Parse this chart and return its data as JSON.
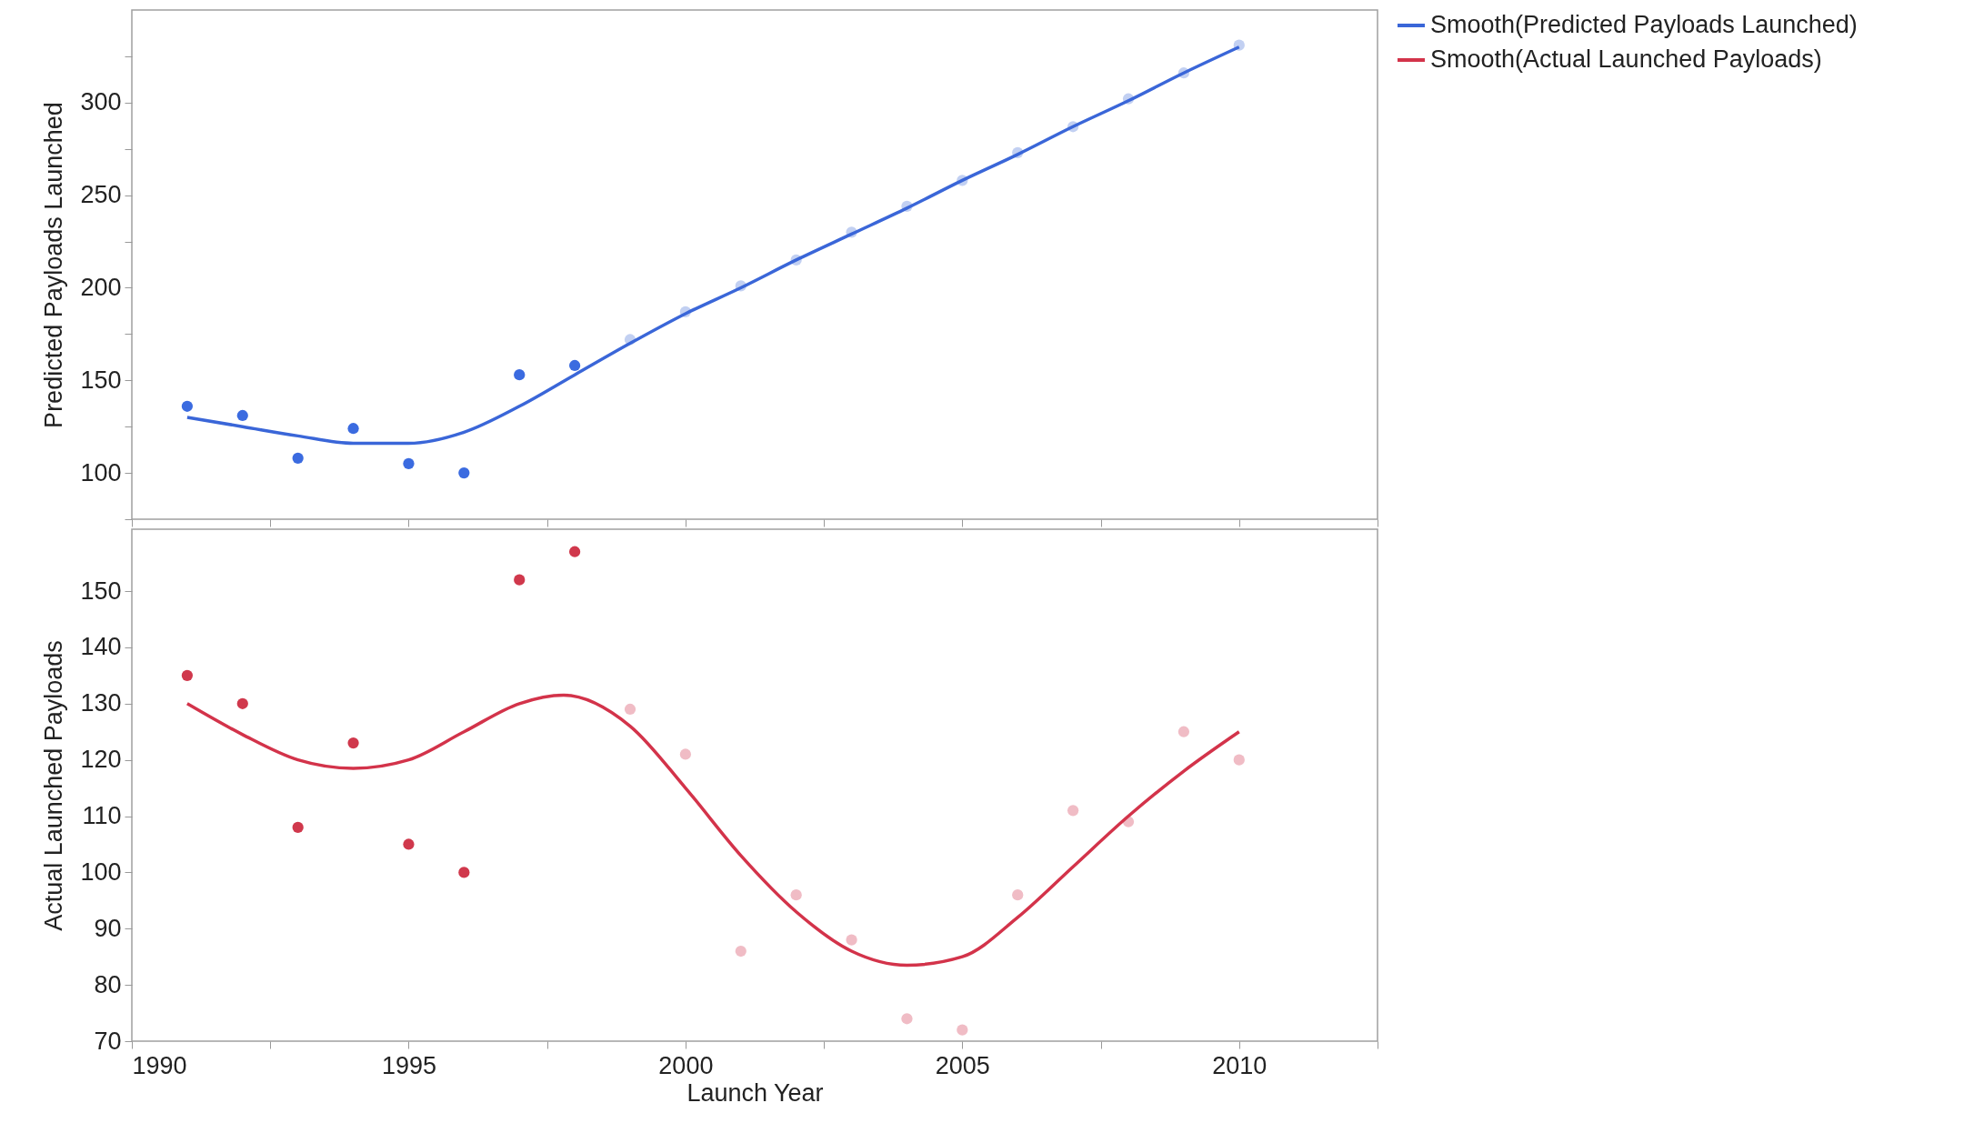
{
  "chart_data": [
    {
      "type": "scatter",
      "ylabel": "Predicted Payloads Launched",
      "xlim": [
        1990,
        2012.5
      ],
      "xticks": [
        1990,
        {
          "value": 1992.5,
          "label": null
        },
        1995,
        {
          "value": 1997.5,
          "label": null
        },
        2000,
        {
          "value": 2002.5,
          "label": null
        },
        2005,
        {
          "value": 2007.5,
          "label": null
        },
        2010,
        {
          "value": 2012.5,
          "label": null
        }
      ],
      "ylim": [
        75,
        350
      ],
      "yticks": [
        {
          "value": 75,
          "label": null
        },
        100,
        {
          "value": 125,
          "label": null
        },
        150,
        {
          "value": 175,
          "label": null
        },
        200,
        {
          "value": 225,
          "label": null
        },
        250,
        {
          "value": 275,
          "label": null
        },
        300,
        {
          "value": 325,
          "label": null
        }
      ],
      "tick_labels": "y",
      "grid": false,
      "legend": "top right",
      "series": [
        {
          "marker": "circle",
          "x": [
            1991,
            1992,
            1993,
            1994,
            1995,
            1996,
            1997,
            1998,
            1999,
            2000,
            2001,
            2002,
            2003,
            2004,
            2005,
            2006,
            2007,
            2008,
            2009,
            2010
          ],
          "values": [
            136,
            131,
            108,
            124,
            105,
            100,
            153,
            158,
            172,
            187,
            201,
            215,
            230,
            244,
            258,
            273,
            287,
            302,
            316,
            331
          ],
          "colors": [
            "#3b6be0",
            "#3b6be0",
            "#3b6be0",
            "#3b6be0",
            "#3b6be0",
            "#3b6be0",
            "#3b6be0",
            "#3b6be0",
            "#c2d0f2",
            "#c2d0f2",
            "#c2d0f2",
            "#c2d0f2",
            "#c2d0f2",
            "#c2d0f2",
            "#c2d0f2",
            "#c2d0f2",
            "#c2d0f2",
            "#c2d0f2",
            "#c2d0f2",
            "#c2d0f2"
          ]
        },
        {
          "type": "line",
          "name": "Smooth(Predicted Payloads Launched)",
          "color": "#3a66d8",
          "x": [
            1991,
            1992,
            1993,
            1994,
            1995,
            1996,
            1997,
            1998,
            1999,
            2000,
            2001,
            2002,
            2003,
            2004,
            2005,
            2006,
            2007,
            2008,
            2009,
            2010
          ],
          "values": [
            130,
            125,
            120,
            116,
            116,
            122,
            136,
            153,
            170,
            186,
            200,
            215,
            229,
            243,
            258,
            272,
            287,
            301,
            316,
            330
          ]
        }
      ]
    },
    {
      "type": "scatter",
      "xlabel": "Launch Year",
      "ylabel": "Actual Launched Payloads",
      "xlim": [
        1990,
        2012.5
      ],
      "xticks": [
        1990,
        {
          "value": 1992.5,
          "label": null
        },
        1995,
        {
          "value": 1997.5,
          "label": null
        },
        2000,
        {
          "value": 2002.5,
          "label": null
        },
        2005,
        {
          "value": 2007.5,
          "label": null
        },
        2010,
        {
          "value": 2012.5,
          "label": null
        }
      ],
      "ylim": [
        70,
        161
      ],
      "yticks": [
        70,
        80,
        90,
        100,
        110,
        120,
        130,
        140,
        150
      ],
      "grid": false,
      "legend": "top right",
      "series": [
        {
          "marker": "circle",
          "x": [
            1991,
            1992,
            1993,
            1994,
            1995,
            1996,
            1997,
            1998,
            1999,
            2000,
            2001,
            2002,
            2003,
            2004,
            2005,
            2006,
            2007,
            2008,
            2009,
            2010
          ],
          "values": [
            135,
            130,
            108,
            123,
            105,
            100,
            152,
            157,
            129,
            121,
            86,
            96,
            88,
            74,
            72,
            96,
            111,
            109,
            125,
            120
          ],
          "colors": [
            "#d0384c",
            "#d0384c",
            "#d0384c",
            "#d0384c",
            "#d0384c",
            "#d0384c",
            "#d0384c",
            "#d0384c",
            "#f0bcc5",
            "#f0bcc5",
            "#f0bcc5",
            "#f0bcc5",
            "#f0bcc5",
            "#f0bcc5",
            "#f0bcc5",
            "#f0bcc5",
            "#f0bcc5",
            "#f0bcc5",
            "#f0bcc5",
            "#f0bcc5"
          ]
        },
        {
          "type": "line",
          "name": "Smooth(Actual Launched Payloads)",
          "color": "#d3334a",
          "x": [
            1991,
            1992,
            1993,
            1994,
            1995,
            1996,
            1997,
            1997.8,
            1999,
            2000,
            2001,
            2002,
            2003,
            2004,
            2005,
            2006,
            2007,
            2008,
            2009,
            2010
          ],
          "values": [
            130,
            124.5,
            120,
            118.5,
            120,
            125,
            130,
            131.5,
            126,
            115,
            103,
            93,
            86,
            83.5,
            85,
            92,
            101,
            110,
            118,
            125
          ]
        }
      ]
    }
  ]
}
